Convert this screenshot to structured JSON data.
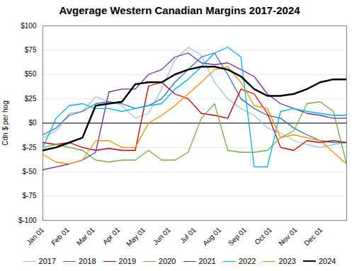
{
  "chart_data": {
    "type": "line",
    "title": "Avgerage Western Canadian Margins 2017-2024",
    "ylabel": "Cdn $ per hog",
    "x": [
      0,
      0.5217391304,
      1.0434782609,
      1.5652173913,
      2.0869565217,
      2.6086956522,
      3.1304347826,
      3.652173913,
      4.1739130435,
      4.6956521739,
      5.2173913043,
      5.7391304348,
      6.2608695652,
      6.7826086957,
      7.3043478261,
      7.8260869565,
      8.347826087,
      8.8695652174,
      9.3913043478,
      9.9130434783,
      10.4347826087,
      10.9565217391,
      11.4782608696,
      12
    ],
    "xlim": [
      0,
      12
    ],
    "xticks": [
      {
        "value": 0,
        "label": "Jan 01"
      },
      {
        "value": 1,
        "label": "Feb 01"
      },
      {
        "value": 2,
        "label": "Mar 01"
      },
      {
        "value": 3,
        "label": "Apr 01"
      },
      {
        "value": 4,
        "label": "May 01"
      },
      {
        "value": 5,
        "label": "Jun 01"
      },
      {
        "value": 6,
        "label": "Jul 01"
      },
      {
        "value": 7,
        "label": "Aug 01"
      },
      {
        "value": 8,
        "label": "Sep 01"
      },
      {
        "value": 9,
        "label": "Oct 01"
      },
      {
        "value": 10,
        "label": "Nov 01"
      },
      {
        "value": 11,
        "label": "Dec 01"
      }
    ],
    "ylim": [
      -100,
      100
    ],
    "yticks": [
      {
        "value": -100,
        "label": "$-100"
      },
      {
        "value": -75,
        "label": "$-75"
      },
      {
        "value": -50,
        "label": "$-50"
      },
      {
        "value": -25,
        "label": "$-25"
      },
      {
        "value": 0,
        "label": "$0"
      },
      {
        "value": 25,
        "label": "$25"
      },
      {
        "value": 50,
        "label": "$50"
      },
      {
        "value": 75,
        "label": "$75"
      },
      {
        "value": 100,
        "label": "$100"
      }
    ],
    "grid": true,
    "legend": "bottom",
    "series": [
      {
        "name": "2017",
        "color": "#9DC3E6",
        "line_style": "solid",
        "values": [
          -15,
          -8,
          10,
          12,
          27,
          22,
          18,
          5,
          10,
          35,
          65,
          78,
          70,
          42,
          25,
          15,
          8,
          -5,
          -10,
          -18,
          -22,
          -25,
          -22,
          -20
        ]
      },
      {
        "name": "2018",
        "color": "#2E75B6",
        "line_style": "solid",
        "values": [
          -12,
          -5,
          8,
          12,
          20,
          22,
          20,
          15,
          18,
          25,
          42,
          55,
          68,
          72,
          50,
          25,
          15,
          8,
          5,
          -5,
          -12,
          -18,
          -20,
          -20
        ]
      },
      {
        "name": "2019",
        "color": "#C00000",
        "line_style": "solid",
        "values": [
          -20,
          -22,
          -20,
          -25,
          -28,
          -26,
          -28,
          -28,
          38,
          42,
          30,
          25,
          10,
          8,
          5,
          35,
          30,
          10,
          -25,
          -28,
          -18,
          -20,
          -18,
          -20
        ]
      },
      {
        "name": "2020",
        "color": "#70AD47",
        "line_style": "solid",
        "values": [
          -25,
          -22,
          -25,
          -28,
          -38,
          -40,
          -38,
          -38,
          -28,
          -38,
          -38,
          -30,
          5,
          20,
          -28,
          -30,
          -30,
          -28,
          -15,
          -8,
          20,
          22,
          12,
          -42
        ]
      },
      {
        "name": "2021",
        "color": "#7030A0",
        "line_style": "solid",
        "values": [
          -48,
          -45,
          -42,
          -38,
          -30,
          32,
          35,
          35,
          50,
          55,
          68,
          72,
          62,
          60,
          62,
          55,
          48,
          30,
          20,
          15,
          10,
          8,
          5,
          5
        ]
      },
      {
        "name": "2022",
        "color": "#00B0F0",
        "line_style": "solid",
        "values": [
          -25,
          5,
          18,
          20,
          15,
          15,
          12,
          15,
          18,
          20,
          35,
          45,
          58,
          72,
          78,
          68,
          -45,
          -45,
          12,
          15,
          12,
          10,
          8,
          8
        ]
      },
      {
        "name": "2023",
        "color": "#FF8C00",
        "line_style": "solid",
        "values": [
          -32,
          -40,
          -42,
          -38,
          -18,
          -18,
          -25,
          -25,
          0,
          8,
          18,
          30,
          42,
          55,
          58,
          42,
          18,
          15,
          -15,
          -12,
          -15,
          -18,
          -30,
          -42
        ]
      },
      {
        "name": "2024",
        "color": "#000000",
        "line_style": "thick",
        "values": [
          -28,
          -25,
          -20,
          -15,
          18,
          20,
          22,
          40,
          42,
          42,
          50,
          55,
          58,
          58,
          55,
          48,
          35,
          28,
          28,
          30,
          35,
          42,
          45,
          45
        ]
      }
    ]
  }
}
